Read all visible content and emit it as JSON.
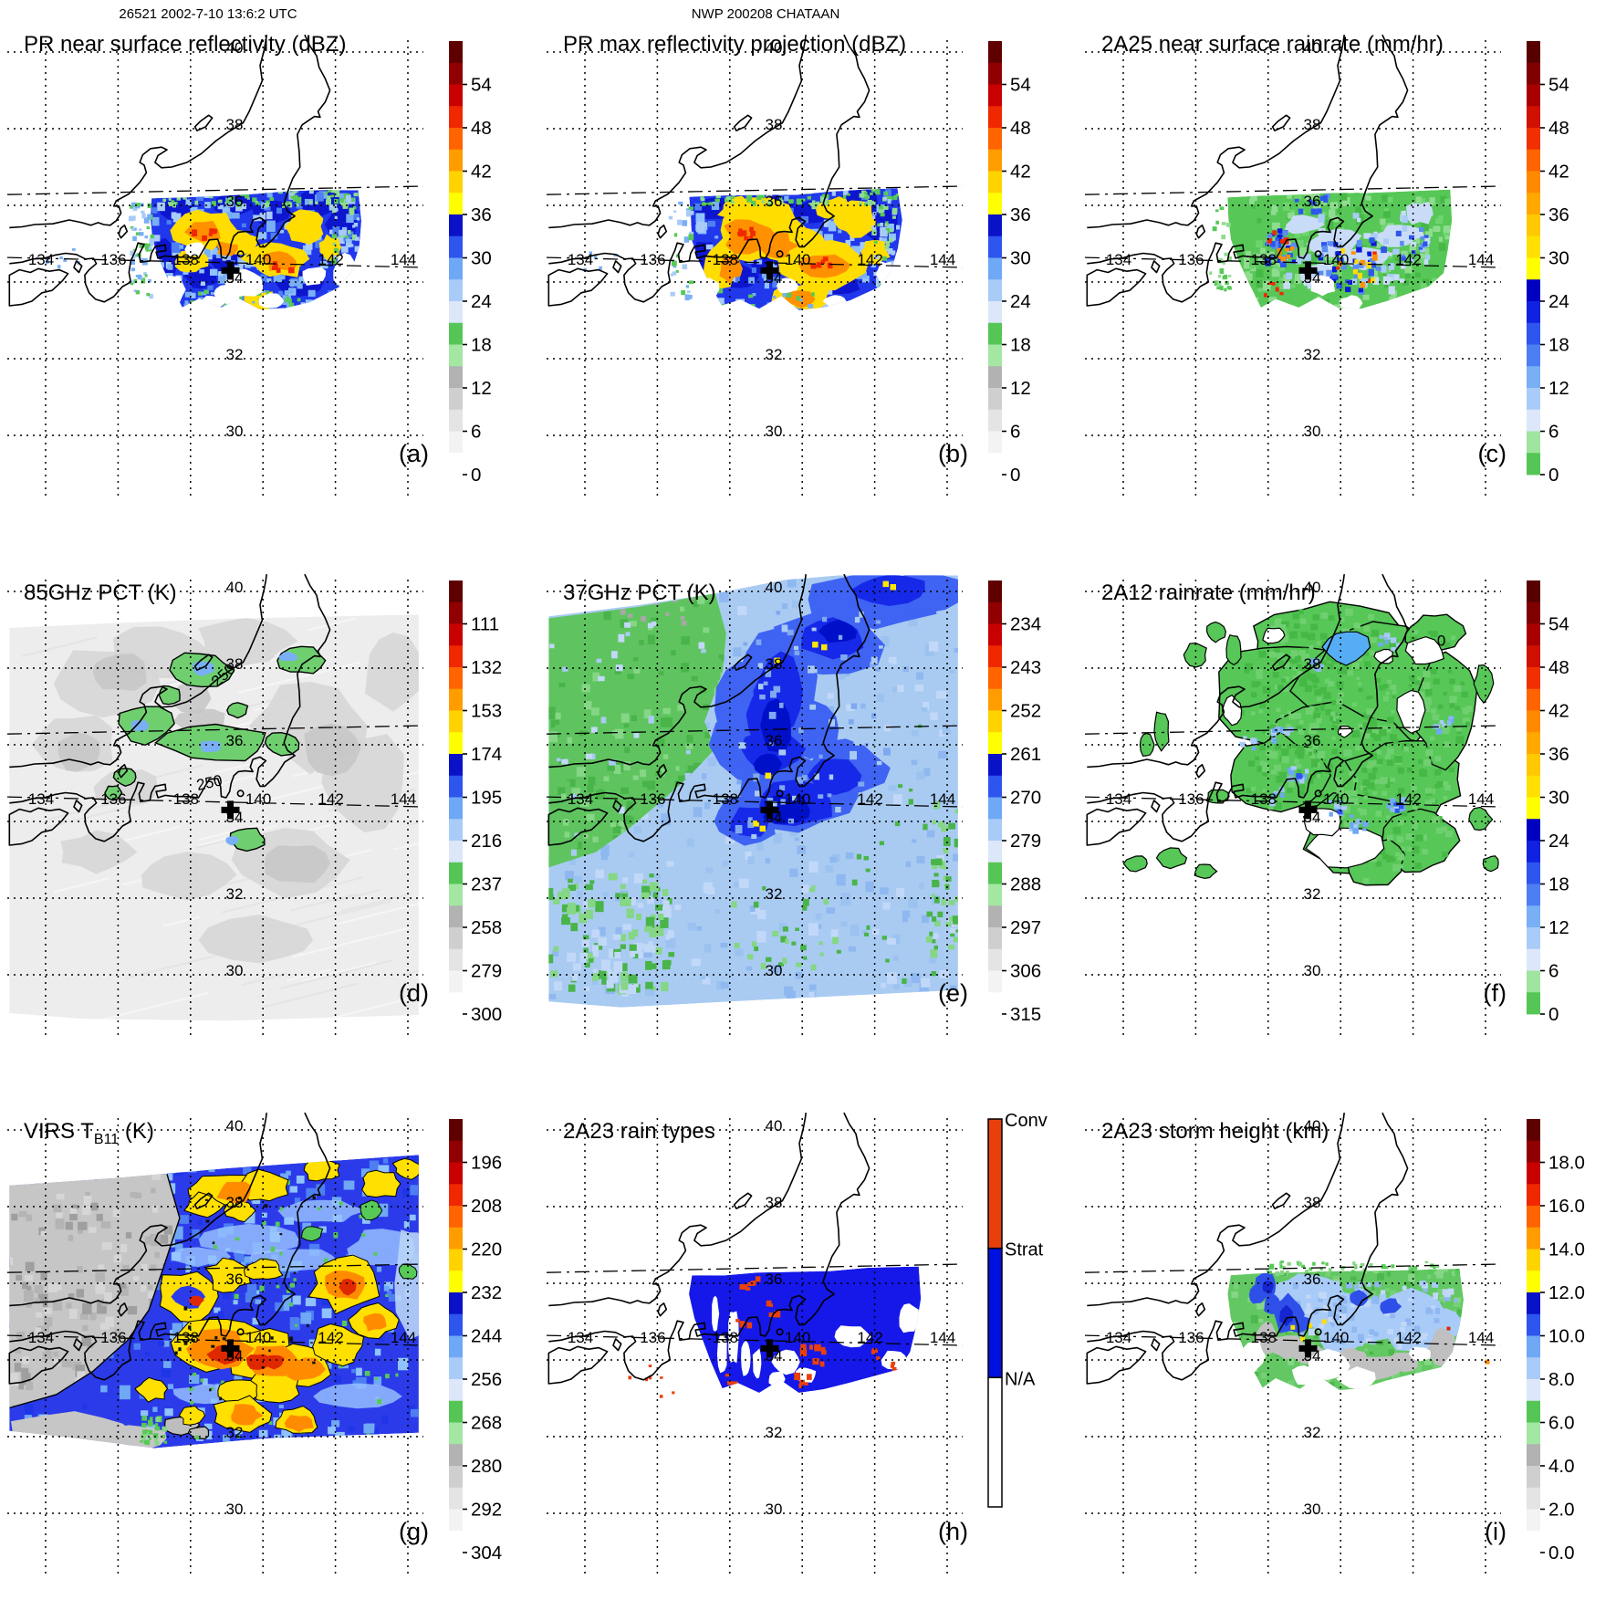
{
  "header": {
    "left": "26521 2002-7-10 13:6:2 UTC",
    "center": "NWP 200208 CHATAAN"
  },
  "axes": {
    "lon_ticks": [
      "134",
      "136",
      "138",
      "140",
      "142",
      "144"
    ],
    "lat_ticks": [
      "40",
      "38",
      "36",
      "34",
      "32",
      "30"
    ]
  },
  "colorbars": {
    "dbz_ticks": [
      "54",
      "48",
      "42",
      "36",
      "30",
      "24",
      "18",
      "12",
      "6",
      "0"
    ],
    "pct85_ticks": [
      "111",
      "132",
      "153",
      "174",
      "195",
      "216",
      "237",
      "258",
      "279",
      "300"
    ],
    "pct37_ticks": [
      "234",
      "243",
      "252",
      "261",
      "270",
      "279",
      "288",
      "297",
      "306",
      "315"
    ],
    "virs_ticks": [
      "196",
      "208",
      "220",
      "232",
      "244",
      "256",
      "268",
      "280",
      "292",
      "304"
    ],
    "height_ticks": [
      "18.0",
      "16.0",
      "14.0",
      "12.0",
      "10.0",
      "8.0",
      "6.0",
      "4.0",
      "2.0",
      "0.0"
    ],
    "raintype_labels": [
      "Conv",
      "Strat",
      "N/A"
    ],
    "rainbow_colors_bottom_to_top": [
      "#FFFFFF",
      "#F3F3F3",
      "#E4E4E4",
      "#CFCFCF",
      "#B2B2B2",
      "#A3E7A3",
      "#55C655",
      "#DCE7FA",
      "#A9CBF8",
      "#6FA8F5",
      "#2E55EE",
      "#0A12C8",
      "#FFFF00",
      "#FFD300",
      "#FF9D00",
      "#FF6400",
      "#F02800",
      "#C80000",
      "#900000",
      "#5E0000"
    ],
    "rainrate_colors_bottom_to_top": [
      "#55C655",
      "#9FE49F",
      "#DCE7FA",
      "#A9CBF8",
      "#79AFF5",
      "#4D7FF2",
      "#2E55EE",
      "#1022E0",
      "#0000C0",
      "#FFFF00",
      "#FFE000",
      "#FFC800",
      "#FFA800",
      "#FF8A00",
      "#FF6400",
      "#F03000",
      "#D01000",
      "#A80000",
      "#800000",
      "#580000"
    ],
    "raintype_colors": {
      "conv": "#E8400D",
      "strat": "#0010E0",
      "na": "#FFFFFF"
    }
  },
  "chart_data": [
    {
      "type": "heatmap",
      "letter": "(a)",
      "title": "PR near surface reflectivity (dBZ)",
      "field": "pr_nsr",
      "colorbar": {
        "colors_key": "rainbow_colors_bottom_to_top",
        "ticks_key": "dbz_ticks"
      },
      "lon_range": [
        134,
        144
      ],
      "lat_range": [
        30,
        40
      ]
    },
    {
      "type": "heatmap",
      "letter": "(b)",
      "title": "PR max reflectivity projection (dBZ)",
      "field": "pr_max",
      "colorbar": {
        "colors_key": "rainbow_colors_bottom_to_top",
        "ticks_key": "dbz_ticks"
      },
      "lon_range": [
        134,
        144
      ],
      "lat_range": [
        30,
        40
      ]
    },
    {
      "type": "heatmap",
      "letter": "(c)",
      "title": "2A25 near surface rainrate (mm/hr)",
      "field": "rr_2a25",
      "colorbar": {
        "colors_key": "rainrate_colors_bottom_to_top",
        "ticks_key": "dbz_ticks"
      },
      "lon_range": [
        134,
        144
      ],
      "lat_range": [
        30,
        40
      ]
    },
    {
      "type": "heatmap",
      "letter": "(d)",
      "title": "85GHz PCT (K)",
      "field": "pct85",
      "colorbar": {
        "colors_key": "rainbow_colors_bottom_to_top",
        "ticks_key": "pct85_ticks"
      },
      "contour_labels": [
        {
          "text": "250",
          "lon": 139.0,
          "lat": 37.72,
          "rot": -42
        },
        {
          "text": "250",
          "lon": 138.55,
          "lat": 34.88,
          "rot": -12
        }
      ],
      "lon_range": [
        134,
        144
      ],
      "lat_range": [
        30,
        40
      ]
    },
    {
      "type": "heatmap",
      "letter": "(e)",
      "title": "37GHz PCT (K)",
      "field": "pct37",
      "colorbar": {
        "colors_key": "rainbow_colors_bottom_to_top",
        "ticks_key": "pct37_ticks"
      },
      "lon_range": [
        134,
        144
      ],
      "lat_range": [
        30,
        40
      ]
    },
    {
      "type": "heatmap",
      "letter": "(f)",
      "title": "2A12 rainrate (mm/hr)",
      "field": "rr_2a12",
      "colorbar": {
        "colors_key": "rainrate_colors_bottom_to_top",
        "ticks_key": "dbz_ticks"
      },
      "contour_labels": [
        {
          "text": "0",
          "lon": 142.78,
          "lat": 38.58,
          "rot": 0
        }
      ],
      "lon_range": [
        134,
        144
      ],
      "lat_range": [
        30,
        40
      ]
    },
    {
      "type": "heatmap",
      "letter": "(g)",
      "title": "VIRS T",
      "title_sub": "B11",
      "title_end": " (K)",
      "field": "virs",
      "colorbar": {
        "colors_key": "rainbow_colors_bottom_to_top",
        "ticks_key": "virs_ticks"
      },
      "lon_range": [
        134,
        144
      ],
      "lat_range": [
        30,
        40
      ]
    },
    {
      "type": "heatmap",
      "letter": "(h)",
      "title": "2A23 rain types",
      "field": "raintypes",
      "colorbar": {
        "type": "raintype"
      },
      "lon_range": [
        134,
        144
      ],
      "lat_range": [
        30,
        40
      ]
    },
    {
      "type": "heatmap",
      "letter": "(i)",
      "title": "2A23 storm height (km)",
      "field": "stormheight",
      "colorbar": {
        "colors_key": "rainbow_colors_bottom_to_top",
        "ticks_key": "height_ticks"
      },
      "lon_range": [
        134,
        144
      ],
      "lat_range": [
        30,
        40
      ]
    }
  ],
  "marker": {
    "name": "storm-center-cross",
    "lon": 139.1,
    "lat": 34.3
  }
}
